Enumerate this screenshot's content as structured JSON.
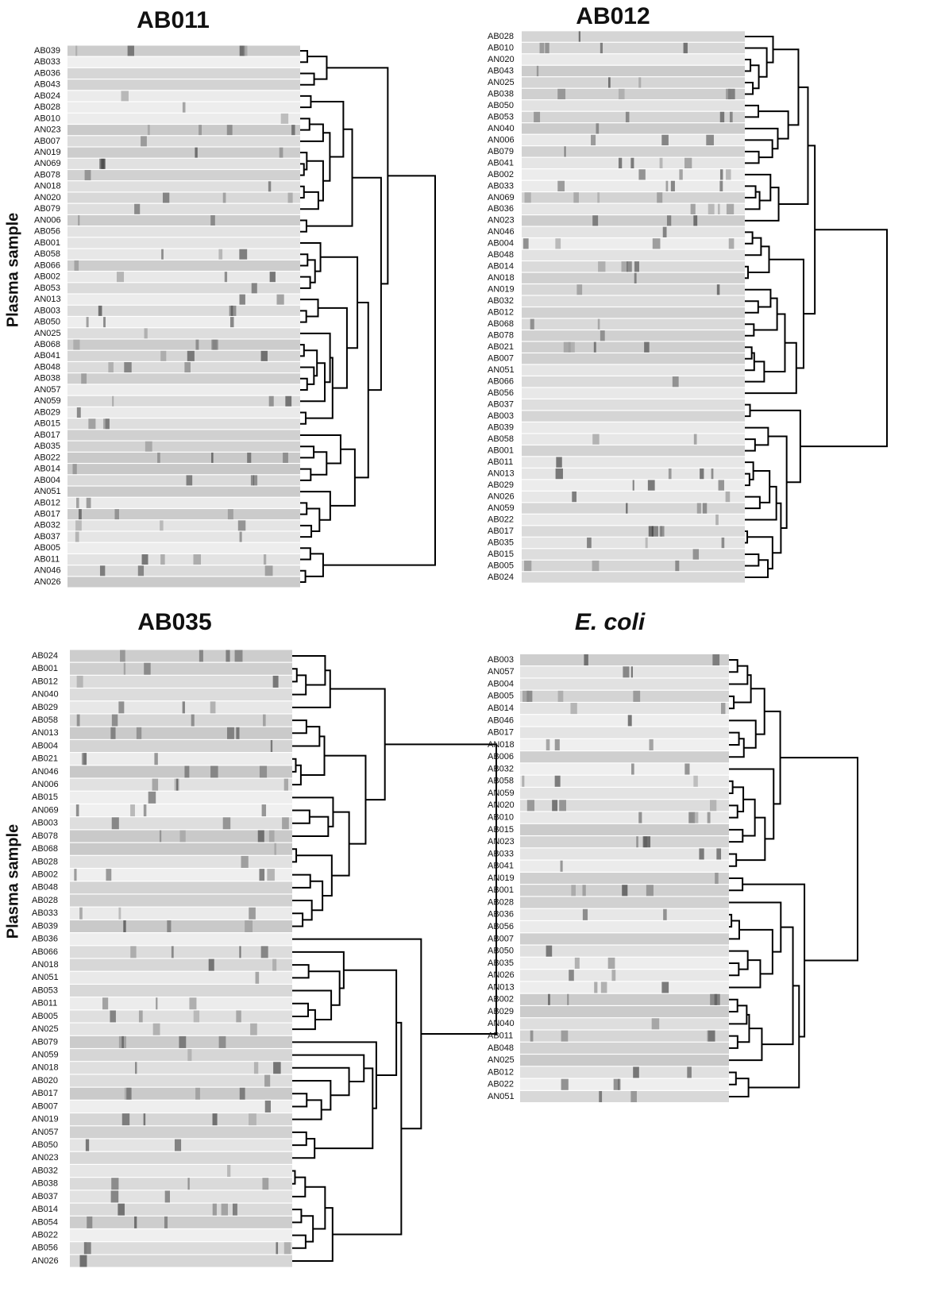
{
  "panels": [
    {
      "title": "AB011",
      "axis_label": "Plasma sample",
      "samples": [
        "AB039",
        "AB033",
        "AB036",
        "AB043",
        "AB024",
        "AB028",
        "AB010",
        "AN023",
        "AB007",
        "AN019",
        "AN069",
        "AB078",
        "AN018",
        "AN020",
        "AB079",
        "AN006",
        "AB056",
        "AB001",
        "AB058",
        "AB066",
        "AB002",
        "AB053",
        "AN013",
        "AB003",
        "AB050",
        "AN025",
        "AB068",
        "AB041",
        "AB048",
        "AB038",
        "AN057",
        "AN059",
        "AB029",
        "AB015",
        "AB017",
        "AB035",
        "AB022",
        "AB014",
        "AB004",
        "AN051",
        "AB012",
        "AB017",
        "AB032",
        "AB037",
        "AB005",
        "AB011",
        "AN046",
        "AN026"
      ]
    },
    {
      "title": "AB012",
      "samples": [
        "AB028",
        "AB010",
        "AN020",
        "AB043",
        "AN025",
        "AB038",
        "AB050",
        "AB053",
        "AN040",
        "AN006",
        "AB079",
        "AB041",
        "AB002",
        "AB033",
        "AN069",
        "AB036",
        "AN023",
        "AN046",
        "AB004",
        "AB048",
        "AB014",
        "AN018",
        "AN019",
        "AB032",
        "AB012",
        "AB068",
        "AB078",
        "AB021",
        "AB007",
        "AN051",
        "AB066",
        "AB056",
        "AB037",
        "AB003",
        "AB039",
        "AB058",
        "AB001",
        "AB011",
        "AN013",
        "AB029",
        "AN026",
        "AN059",
        "AB022",
        "AB017",
        "AB035",
        "AB015",
        "AB005",
        "AB024"
      ]
    },
    {
      "title": "AB035",
      "axis_label": "Plasma sample",
      "samples": [
        "AB024",
        "AB001",
        "AB012",
        "AN040",
        "AB029",
        "AB058",
        "AN013",
        "AB004",
        "AB021",
        "AN046",
        "AN006",
        "AB015",
        "AN069",
        "AB003",
        "AB078",
        "AB068",
        "AB028",
        "AB002",
        "AB048",
        "AB028",
        "AB033",
        "AB039",
        "AB036",
        "AB066",
        "AN018",
        "AN051",
        "AB053",
        "AB011",
        "AB005",
        "AN025",
        "AB079",
        "AN059",
        "AN018",
        "AB020",
        "AB017",
        "AB007",
        "AN019",
        "AN057",
        "AB050",
        "AN023",
        "AB032",
        "AB038",
        "AB037",
        "AB014",
        "AB054",
        "AB022",
        "AB056",
        "AN026"
      ]
    },
    {
      "title": "E. coli",
      "samples": [
        "AB003",
        "AN057",
        "AB004",
        "AB005",
        "AB014",
        "AB046",
        "AB017",
        "AN018",
        "AB006",
        "AB032",
        "AB058",
        "AN059",
        "AN020",
        "AB010",
        "AB015",
        "AN023",
        "AB033",
        "AB041",
        "AN019",
        "AB001",
        "AB028",
        "AB036",
        "AB056",
        "AB007",
        "AB050",
        "AB035",
        "AN026",
        "AN013",
        "AB002",
        "AB029",
        "AN040",
        "AB011",
        "AB048",
        "AN025",
        "AB012",
        "AB022",
        "AN051"
      ]
    }
  ]
}
